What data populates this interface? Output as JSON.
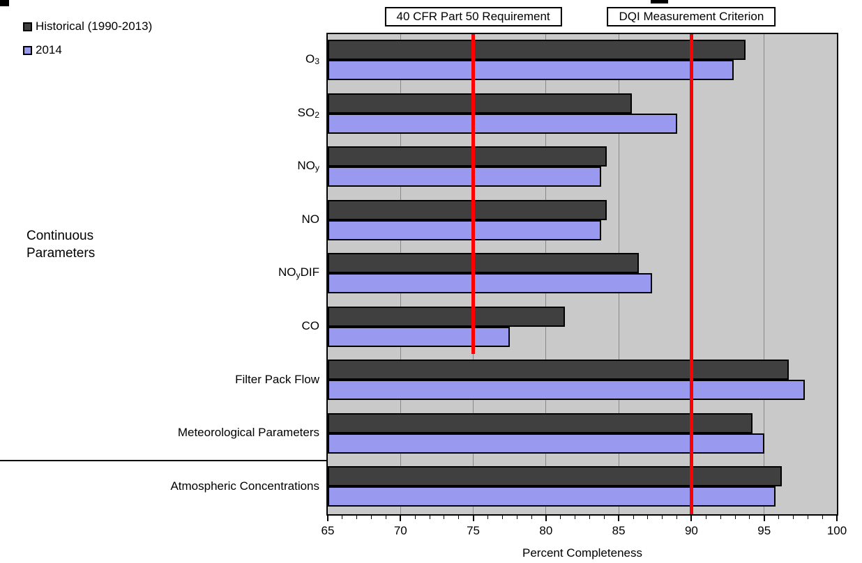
{
  "legend": {
    "items": [
      {
        "label": "Historical (1990-2013)",
        "color": "#404040"
      },
      {
        "label": "2014",
        "color": "#9999F0"
      }
    ]
  },
  "group_label": {
    "line1": "Continuous",
    "line2": "Parameters"
  },
  "annotations": [
    {
      "label": "40 CFR Part 50 Requirement",
      "x": 75
    },
    {
      "label": "DQI Measurement Criterion",
      "x": 90
    }
  ],
  "chart_data": {
    "type": "bar",
    "orientation": "horizontal",
    "title": "",
    "xlabel": "Percent Completeness",
    "ylabel": "Continuous Parameters",
    "xlim": [
      65,
      100
    ],
    "x_major_ticks": [
      65,
      70,
      75,
      80,
      85,
      90,
      95,
      100
    ],
    "minor_tick_step": 1,
    "grid": true,
    "plot_background": "#C9C9C9",
    "gridline_color": "#878787",
    "categories": [
      {
        "name": "O3",
        "display": {
          "main": "O",
          "sub": "3",
          "suffix": ""
        }
      },
      {
        "name": "SO2",
        "display": {
          "main": "SO",
          "sub": "2",
          "suffix": ""
        }
      },
      {
        "name": "NOy",
        "display": {
          "main": "NO",
          "sub": "y",
          "suffix": ""
        }
      },
      {
        "name": "NO",
        "display": {
          "main": "NO",
          "sub": "",
          "suffix": ""
        }
      },
      {
        "name": "NOyDIF",
        "display": {
          "main": "NO",
          "sub": "y",
          "suffix": "DIF"
        }
      },
      {
        "name": "CO",
        "display": {
          "main": "CO",
          "sub": "",
          "suffix": ""
        }
      },
      {
        "name": "Filter Pack Flow",
        "display": {
          "main": "Filter Pack Flow",
          "sub": "",
          "suffix": ""
        }
      },
      {
        "name": "Meteorological Parameters",
        "display": {
          "main": "Meteorological Parameters",
          "sub": "",
          "suffix": ""
        }
      },
      {
        "name": "Atmospheric Concentrations",
        "display": {
          "main": "Atmospheric Concentrations",
          "sub": "",
          "suffix": ""
        }
      }
    ],
    "series": [
      {
        "name": "Historical (1990-2013)",
        "color": "#404040",
        "values": [
          93.7,
          85.9,
          84.2,
          84.2,
          86.4,
          81.3,
          96.7,
          94.2,
          96.2
        ]
      },
      {
        "name": "2014",
        "color": "#9999F0",
        "values": [
          92.9,
          89.0,
          83.8,
          83.8,
          87.3,
          77.5,
          97.8,
          95.0,
          95.8
        ]
      }
    ],
    "reference_lines": [
      {
        "value": 75,
        "label": "40 CFR Part 50 Requirement",
        "color": "#FF0000",
        "extent_rows": 6
      },
      {
        "value": 90,
        "label": "DQI Measurement Criterion",
        "color": "#FF0000",
        "extent_rows": 9
      }
    ]
  }
}
